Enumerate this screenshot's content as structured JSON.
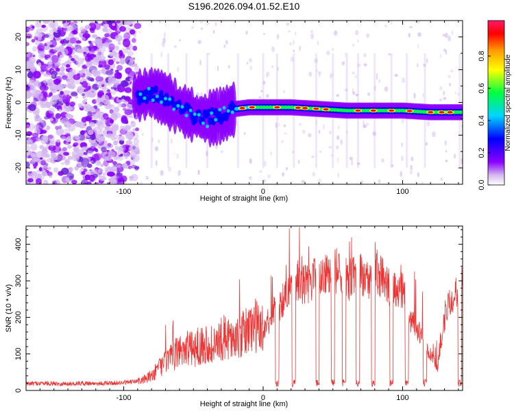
{
  "title": "S196.2026.094.01.52.E10",
  "chart_data": [
    {
      "type": "heatmap",
      "name": "spectrogram",
      "xlabel": "Height of straight line (km)",
      "ylabel": "Frequency (Hz)",
      "xlim": [
        -170,
        143
      ],
      "ylim": [
        -25,
        25
      ],
      "xticks": [
        -100,
        0,
        100
      ],
      "xtick_labels": [
        "-100",
        "0",
        "100"
      ],
      "yticks": [
        -20,
        -10,
        0,
        10,
        20
      ],
      "ytick_labels": [
        "-20",
        "-10",
        "0",
        "10",
        "20"
      ],
      "ridge": {
        "x": [
          -90,
          -80,
          -70,
          -60,
          -50,
          -40,
          -30,
          -20,
          -10,
          0,
          20,
          40,
          60,
          80,
          100,
          120,
          140
        ],
        "y": [
          2,
          3,
          1,
          -2,
          -4,
          -5,
          -4,
          -2,
          -1.5,
          -1.5,
          -1.5,
          -2,
          -2.5,
          -2.5,
          -2.5,
          -3,
          -3
        ]
      },
      "colorbar": {
        "label": "Normalized spectral amplitude",
        "range": [
          0,
          1
        ],
        "ticks": [
          0.0,
          0.2,
          0.4,
          0.6,
          0.8
        ],
        "tick_labels": [
          "0.0",
          "0.2",
          "0.4",
          "0.6",
          "0.8"
        ],
        "colors": [
          "#ffffff",
          "#d4b8ef",
          "#8b00ff",
          "#0000ff",
          "#00d5ff",
          "#00ff40",
          "#ffff00",
          "#ff9900",
          "#ff0000",
          "#ff1a66"
        ]
      }
    },
    {
      "type": "line",
      "name": "snr",
      "xlabel": "Height of straight line (km)",
      "ylabel": "SNR (10 * v/v)",
      "xlim": [
        -170,
        143
      ],
      "ylim": [
        0,
        450
      ],
      "xticks": [
        -100,
        0,
        100
      ],
      "xtick_labels": [
        "-100",
        "0",
        "100"
      ],
      "yticks": [
        0,
        100,
        200,
        300,
        400
      ],
      "ytick_labels": [
        "0",
        "100",
        "200",
        "300",
        "400"
      ],
      "line_color": "#ee3333",
      "series": [
        {
          "name": "SNR",
          "x": [
            -170,
            -160,
            -150,
            -140,
            -130,
            -120,
            -110,
            -100,
            -90,
            -85,
            -80,
            -75,
            -70,
            -65,
            -60,
            -55,
            -50,
            -45,
            -40,
            -35,
            -30,
            -25,
            -20,
            -15,
            -10,
            -5,
            0,
            5,
            10,
            15,
            20,
            25,
            30,
            35,
            40,
            45,
            50,
            55,
            60,
            65,
            70,
            75,
            80,
            85,
            90,
            95,
            100,
            105,
            110,
            115,
            120,
            125,
            130,
            135,
            140,
            143
          ],
          "y": [
            18,
            20,
            19,
            18,
            20,
            19,
            20,
            21,
            25,
            30,
            40,
            60,
            80,
            90,
            110,
            120,
            110,
            125,
            130,
            120,
            140,
            150,
            130,
            150,
            170,
            180,
            160,
            200,
            230,
            250,
            280,
            300,
            290,
            300,
            320,
            310,
            330,
            320,
            300,
            310,
            320,
            300,
            330,
            310,
            290,
            280,
            270,
            200,
            170,
            130,
            100,
            60,
            200,
            260,
            280,
            300
          ]
        }
      ],
      "dips_x": [
        10,
        22,
        39,
        50,
        58,
        68,
        79,
        92,
        103,
        116,
        141
      ]
    }
  ]
}
